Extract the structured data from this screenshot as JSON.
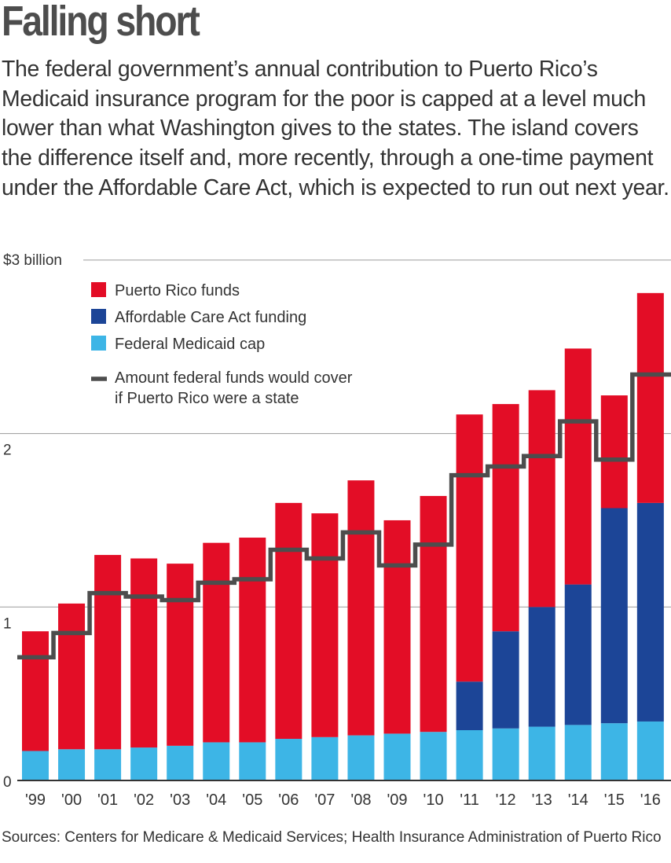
{
  "title": "Falling short",
  "subtitle": "The federal government’s annual contribution to Puerto Rico’s Medicaid insurance program for the poor is capped at a level much lower than what Washington gives to the states. The island covers the difference itself and, more recently, through a one-time payment under the Affordable Care Act, which is expected to run out next year.",
  "source": "Sources: Centers for Medicare & Medicaid Services; Health Insurance Administration of Puerto Rico",
  "chart_data": {
    "type": "bar",
    "stacked": true,
    "categories": [
      "'99",
      "'00",
      "'01",
      "'02",
      "'03",
      "'04",
      "'05",
      "'06",
      "'07",
      "'08",
      "'09",
      "'10",
      "'11",
      "'12",
      "'13",
      "'14",
      "'15",
      "'16"
    ],
    "series": [
      {
        "name": "Federal Medicaid cap",
        "color": "#3db5e6",
        "values": [
          0.17,
          0.18,
          0.18,
          0.19,
          0.2,
          0.22,
          0.22,
          0.24,
          0.25,
          0.26,
          0.27,
          0.28,
          0.29,
          0.3,
          0.31,
          0.32,
          0.33,
          0.34
        ]
      },
      {
        "name": "Affordable Care Act funding",
        "color": "#1c4597",
        "values": [
          0,
          0,
          0,
          0,
          0,
          0,
          0,
          0,
          0,
          0,
          0,
          0,
          0.28,
          0.56,
          0.69,
          0.81,
          1.24,
          1.26
        ]
      },
      {
        "name": "Puerto Rico funds",
        "color": "#e30d26",
        "values": [
          0.69,
          0.84,
          1.12,
          1.09,
          1.05,
          1.15,
          1.18,
          1.36,
          1.29,
          1.47,
          1.23,
          1.36,
          1.54,
          1.31,
          1.25,
          1.36,
          0.65,
          1.21
        ]
      }
    ],
    "step_line": {
      "name": "Amount federal funds would cover if Puerto Rico were a state",
      "color": "#4d4d4d",
      "values": [
        0.71,
        0.85,
        1.08,
        1.06,
        1.04,
        1.14,
        1.16,
        1.33,
        1.28,
        1.43,
        1.24,
        1.36,
        1.76,
        1.81,
        1.87,
        2.07,
        1.85,
        2.34
      ]
    },
    "legend": {
      "placement": "top-left",
      "items": [
        {
          "label": "Puerto Rico funds",
          "color": "#e30d26",
          "kind": "box"
        },
        {
          "label": "Affordable Care Act funding",
          "color": "#1c4597",
          "kind": "box"
        },
        {
          "label": "Federal Medicaid cap",
          "color": "#3db5e6",
          "kind": "box"
        }
      ],
      "line_item": {
        "line1": "Amount federal funds would cover",
        "line2": "if Puerto Rico were a state",
        "color": "#4d4d4d"
      }
    },
    "y_axis": {
      "ylim": [
        0,
        3
      ],
      "ticks": [
        {
          "value": 0,
          "label": "0"
        },
        {
          "value": 1,
          "label": "1"
        },
        {
          "value": 2,
          "label": "2"
        },
        {
          "value": 3,
          "label": "$3 billion"
        }
      ],
      "grid": true
    }
  }
}
